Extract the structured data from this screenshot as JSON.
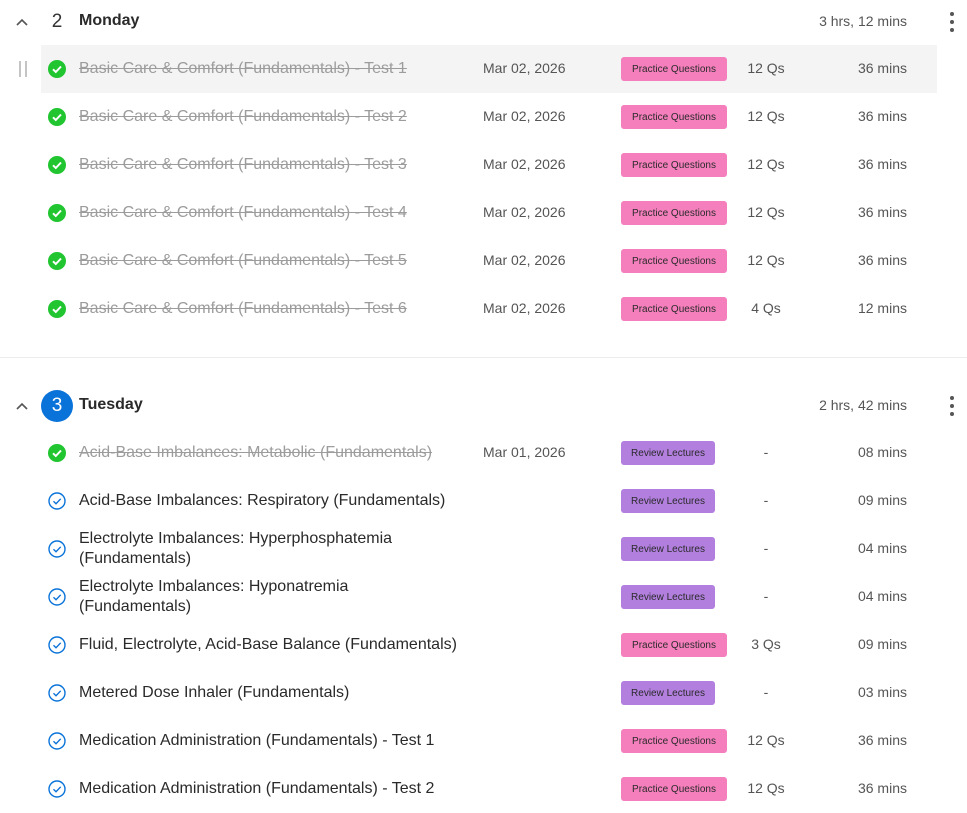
{
  "colors": {
    "accent": "#0a73d9",
    "complete_green": "#20c52f",
    "pending_blue": "#0a73d9",
    "practice_tag": "#f57fbd",
    "review_tag": "#b27fdf",
    "row_highlight": "#f4f4f4"
  },
  "days": [
    {
      "number": "2",
      "name": "Monday",
      "total": "3 hrs, 12 mins",
      "active": false,
      "items": [
        {
          "title": "Basic Care & Comfort (Fundamentals) - Test 1",
          "date": "Mar 02, 2026",
          "tag": "Practice Questions",
          "tag_type": "practice",
          "questions": "12 Qs",
          "duration": "36 mins",
          "completed": true,
          "highlighted": true
        },
        {
          "title": "Basic Care & Comfort (Fundamentals) - Test 2",
          "date": "Mar 02, 2026",
          "tag": "Practice Questions",
          "tag_type": "practice",
          "questions": "12 Qs",
          "duration": "36 mins",
          "completed": true
        },
        {
          "title": "Basic Care & Comfort (Fundamentals) - Test 3",
          "date": "Mar 02, 2026",
          "tag": "Practice Questions",
          "tag_type": "practice",
          "questions": "12 Qs",
          "duration": "36 mins",
          "completed": true
        },
        {
          "title": "Basic Care & Comfort (Fundamentals) - Test 4",
          "date": "Mar 02, 2026",
          "tag": "Practice Questions",
          "tag_type": "practice",
          "questions": "12 Qs",
          "duration": "36 mins",
          "completed": true
        },
        {
          "title": "Basic Care & Comfort (Fundamentals) - Test 5",
          "date": "Mar 02, 2026",
          "tag": "Practice Questions",
          "tag_type": "practice",
          "questions": "12 Qs",
          "duration": "36 mins",
          "completed": true
        },
        {
          "title": "Basic Care & Comfort (Fundamentals) - Test 6",
          "date": "Mar 02, 2026",
          "tag": "Practice Questions",
          "tag_type": "practice",
          "questions": "4 Qs",
          "duration": "12 mins",
          "completed": true
        }
      ]
    },
    {
      "number": "3",
      "name": "Tuesday",
      "total": "2 hrs, 42 mins",
      "active": true,
      "items": [
        {
          "title": "Acid-Base Imbalances: Metabolic (Fundamentals)",
          "date": "Mar 01, 2026",
          "tag": "Review Lectures",
          "tag_type": "review",
          "questions": "-",
          "duration": "08 mins",
          "completed": true
        },
        {
          "title": "Acid-Base Imbalances: Respiratory (Fundamentals)",
          "date": "",
          "tag": "Review Lectures",
          "tag_type": "review",
          "questions": "-",
          "duration": "09 mins",
          "completed": false
        },
        {
          "title": "Electrolyte Imbalances: Hyperphosphatemia (Fundamentals)",
          "date": "",
          "tag": "Review Lectures",
          "tag_type": "review",
          "questions": "-",
          "duration": "04 mins",
          "completed": false
        },
        {
          "title": "Electrolyte Imbalances: Hyponatremia (Fundamentals)",
          "date": "",
          "tag": "Review Lectures",
          "tag_type": "review",
          "questions": "-",
          "duration": "04 mins",
          "completed": false
        },
        {
          "title": "Fluid, Electrolyte, Acid-Base Balance (Fundamentals)",
          "date": "",
          "tag": "Practice Questions",
          "tag_type": "practice",
          "questions": "3 Qs",
          "duration": "09 mins",
          "completed": false
        },
        {
          "title": "Metered Dose Inhaler (Fundamentals)",
          "date": "",
          "tag": "Review Lectures",
          "tag_type": "review",
          "questions": "-",
          "duration": "03 mins",
          "completed": false
        },
        {
          "title": "Medication Administration (Fundamentals) - Test 1",
          "date": "",
          "tag": "Practice Questions",
          "tag_type": "practice",
          "questions": "12 Qs",
          "duration": "36 mins",
          "completed": false
        },
        {
          "title": "Medication Administration (Fundamentals) - Test 2",
          "date": "",
          "tag": "Practice Questions",
          "tag_type": "practice",
          "questions": "12 Qs",
          "duration": "36 mins",
          "completed": false
        }
      ]
    }
  ]
}
